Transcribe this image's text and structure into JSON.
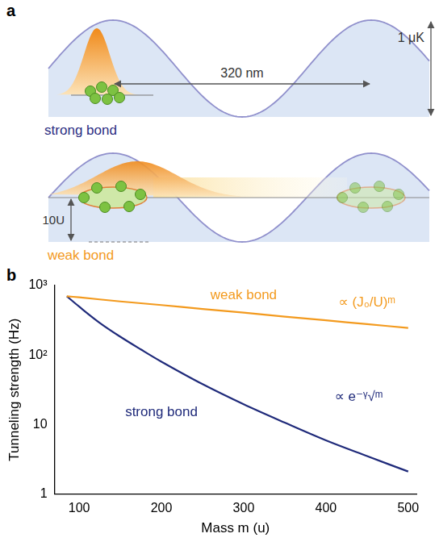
{
  "panel_a": {
    "letter": "a",
    "strong": {
      "label": "strong bond",
      "depth": "1 μK",
      "spacing": "320 nm"
    },
    "weak": {
      "label": "weak bond",
      "gap": "10U"
    }
  },
  "panel_b": {
    "letter": "b"
  },
  "chart_data": {
    "type": "line",
    "x_label": "Mass m (u)",
    "y_label": "Tunneling strength (Hz)",
    "log": "y",
    "grid": false,
    "xlim": [
      70,
      510
    ],
    "xticks": [
      100,
      200,
      300,
      400,
      500
    ],
    "ylim": [
      1,
      1000
    ],
    "yticks": [
      1,
      10,
      {
        "value": 100,
        "label": "10²"
      },
      {
        "value": 1000,
        "label": "10³"
      }
    ],
    "series": [
      {
        "color": "#F39A1E",
        "x": [
          85,
          100,
          150,
          200,
          250,
          300,
          350,
          400,
          450,
          500
        ],
        "values": [
          700,
          675,
          590,
          523,
          460,
          406,
          357,
          315,
          278,
          245
        ]
      },
      {
        "color": "#1F2A7A",
        "x": [
          85,
          100,
          125,
          150,
          175,
          200,
          250,
          300,
          350,
          400,
          450,
          500
        ],
        "values": [
          700,
          496,
          290,
          183,
          120,
          80,
          38,
          19.5,
          10.6,
          5.9,
          3.5,
          2.1
        ]
      }
    ],
    "annotations": [
      {
        "text": "weak bond",
        "x": 300,
        "y": 720,
        "color": "#F39A1E"
      },
      {
        "text": "∝ (J₀/U)ᵐ",
        "x": 450,
        "y": 560,
        "color": "#F39A1E"
      },
      {
        "text": "strong bond",
        "x": 200,
        "y": 15,
        "color": "#1F2A7A"
      },
      {
        "text": "∝ e⁻ᵞ√ᵐ",
        "x": 440,
        "y": 25,
        "color": "#1F2A7A"
      }
    ]
  }
}
